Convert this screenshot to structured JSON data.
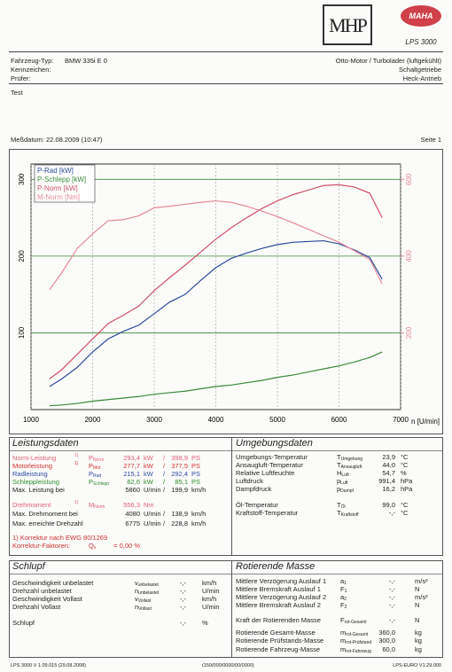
{
  "header": {
    "logo_left": "MHP",
    "logo_right": "MAHA",
    "model": "LPS 3000",
    "vehicle_type_label": "Fahrzeug-Typ:",
    "vehicle_type": "BMW 335i E  0",
    "plate_label": "Kennzeichen:",
    "inspector_label": "Prüfer:",
    "engine": "Otto-Motor / Turbolader (luftgekühlt)",
    "gearbox": "Schaltgetriebe",
    "drive": "Heck-Antrieb",
    "note": "Test",
    "date": "Meßdatum: 22.08.2009 (10:47)",
    "page": "Seite 1"
  },
  "chart_data": {
    "type": "line",
    "x_label": "n [U/min]",
    "x": [
      1300,
      1500,
      1750,
      2000,
      2250,
      2500,
      2750,
      3000,
      3250,
      3500,
      3750,
      4000,
      4250,
      4500,
      4750,
      5000,
      5250,
      5500,
      5750,
      6000,
      6250,
      6500,
      6700
    ],
    "xlim": [
      1000,
      7000
    ],
    "xticks": [
      1000,
      2000,
      3000,
      4000,
      5000,
      6000,
      7000
    ],
    "ylim": [
      0,
      320
    ],
    "yticks": [
      100,
      200,
      300
    ],
    "y2lim": [
      0,
      640
    ],
    "y2ticks": [
      200,
      400,
      600
    ],
    "grid": true,
    "legend": "upper left",
    "series": [
      {
        "name": "P-Rad [kW]",
        "color": "#2b4a9c",
        "values": [
          30,
          40,
          55,
          75,
          92,
          102,
          110,
          125,
          140,
          150,
          168,
          185,
          197,
          204,
          210,
          215,
          218,
          219,
          220,
          216,
          208,
          198,
          170
        ]
      },
      {
        "name": "P-Schlepp [kW]",
        "color": "#3a8a3a",
        "values": [
          5,
          6,
          8,
          11,
          13,
          15,
          17,
          20,
          22,
          24,
          27,
          30,
          32,
          35,
          38,
          42,
          45,
          49,
          53,
          57,
          62,
          68,
          75
        ]
      },
      {
        "name": "P-Norm [kW]",
        "color": "#d0506a",
        "values": [
          40,
          52,
          72,
          92,
          112,
          123,
          135,
          155,
          172,
          188,
          205,
          222,
          237,
          250,
          262,
          272,
          280,
          286,
          292,
          293,
          290,
          282,
          250
        ]
      },
      {
        "name": "M-Norm [Nm]",
        "color": "#e48a98",
        "axis": "y2",
        "values": [
          312,
          357,
          420,
          458,
          492,
          495,
          505,
          526,
          530,
          535,
          540,
          544,
          540,
          530,
          517,
          503,
          487,
          470,
          453,
          436,
          414,
          391,
          328
        ]
      }
    ]
  },
  "power": {
    "title": "Leistungsdaten",
    "rows": [
      {
        "label": "Norm-Leistung",
        "note": "1)",
        "symbol": "P",
        "sub": "Norm",
        "value": "293,4",
        "unit": "kW",
        "sep": "/",
        "value2": "398,9",
        "unit2": "PS",
        "color": "#e0607a"
      },
      {
        "label": "Motorleistung",
        "note": "1)",
        "symbol": "P",
        "sub": "Mot",
        "value": "277,7",
        "unit": "kW",
        "sep": "/",
        "value2": "377,5",
        "unit2": "PS",
        "color": "#d03030"
      },
      {
        "label": "Radleistung",
        "symbol": "P",
        "sub": "Rad",
        "value": "215,1",
        "unit": "kW",
        "sep": "/",
        "value2": "292,4",
        "unit2": "PS",
        "color": "#2b4a9c"
      },
      {
        "label": "Schleppleistung",
        "symbol": "P",
        "sub": "Schlepp",
        "value": "62,6",
        "unit": "kW",
        "sep": "/",
        "value2": "85,1",
        "unit2": "PS",
        "color": "#2e8a2e"
      },
      {
        "label": "Max. Leistung bei",
        "value": "5860",
        "unit": "U/min",
        "sep": "/",
        "value2": "199,9",
        "unit2": "km/h",
        "color": "#222222"
      },
      {
        "label": "Drehmoment",
        "note": "1)",
        "symbol": "M",
        "sub": "Norm",
        "value": "556,3",
        "unit": "Nm",
        "color": "#e0607a"
      },
      {
        "label": "Max. Drehmoment bei",
        "value": "4080",
        "unit": "U/min",
        "sep": "/",
        "value2": "138,9",
        "unit2": "km/h",
        "color": "#222222"
      },
      {
        "label": "Max. erreichte Drehzahl",
        "value": "6775",
        "unit": "U/min",
        "sep": "/",
        "value2": "228,8",
        "unit2": "km/h",
        "color": "#222222"
      },
      {
        "label": "1) Korrektur nach EWG 80/1269",
        "color": "#d03030"
      },
      {
        "label": "Korrektur-Faktoren:",
        "symbol": "Q",
        "sub": "v",
        "value": "=  0,00 %",
        "color": "#d03030"
      }
    ]
  },
  "ambient": {
    "title": "Umgebungsdaten",
    "rows": [
      {
        "label": "Umgebungs-Temperatur",
        "symbol": "T",
        "sub": "Umgebung",
        "value": "23,9",
        "unit": "°C"
      },
      {
        "label": "Ansaugluft-Temperatur",
        "symbol": "T",
        "sub": "Ansaugluft",
        "value": "44,0",
        "unit": "°C"
      },
      {
        "label": "Relative Luftfeuchte",
        "symbol": "H",
        "sub": "Luft",
        "value": "54,7",
        "unit": "%"
      },
      {
        "label": "Luftdruck",
        "symbol": "p",
        "sub": "Luft",
        "value": "991,4",
        "unit": "hPa"
      },
      {
        "label": "Dampfdruck",
        "symbol": "p",
        "sub": "Dampf",
        "value": "16,2",
        "unit": "hPa"
      },
      {
        "label": "Öl-Temperatur",
        "symbol": "T",
        "sub": "Öl",
        "value": "99,0",
        "unit": "°C"
      },
      {
        "label": "Kraftstoff-Temperatur",
        "symbol": "T",
        "sub": "Kraftstoff",
        "value": "-,-",
        "unit": "°C"
      }
    ]
  },
  "slip": {
    "title": "Schlupf",
    "rows": [
      {
        "label": "Geschwindigkeit unbelastet",
        "symbol": "v",
        "sub": "unbelastet",
        "value": "-,-",
        "unit": "km/h"
      },
      {
        "label": "Drehzahl unbelastet",
        "symbol": "n",
        "sub": "unbelastet",
        "value": "-,-",
        "unit": "U/min"
      },
      {
        "label": "Geschwindigkeit Vollast",
        "symbol": "v",
        "sub": "Vollast",
        "value": "-,-",
        "unit": "km/h"
      },
      {
        "label": "Drehzahl Vollast",
        "symbol": "n",
        "sub": "Vollast",
        "value": "-,-",
        "unit": "U/min"
      },
      {
        "label": "Schlupf",
        "value": "-,-",
        "unit": "%"
      }
    ]
  },
  "rotating": {
    "title": "Rotierende Masse",
    "rows": [
      {
        "label": "Mittlere Verzögerung Auslauf 1",
        "symbol": "a",
        "sub": "1",
        "value": "-,-",
        "unit": "m/s²"
      },
      {
        "label": "Mittlere Bremskraft Auslauf 1",
        "symbol": "F",
        "sub": "1",
        "value": "-,-",
        "unit": "N"
      },
      {
        "label": "Mittlere Verzögerung Auslauf 2",
        "symbol": "a",
        "sub": "2",
        "value": "-,-",
        "unit": "m/s²"
      },
      {
        "label": "Mittlere Bremskraft Auslauf 2",
        "symbol": "F",
        "sub": "2",
        "value": "-,-",
        "unit": "N"
      },
      {
        "label": "Kraft der Rotierenden Masse",
        "symbol": "F",
        "sub": "rot-Gesamt",
        "value": "-,-",
        "unit": "N"
      },
      {
        "label": "Rotierende Gesamt-Masse",
        "symbol": "m",
        "sub": "rot-Gesamt",
        "value": "360,0",
        "unit": "kg"
      },
      {
        "label": "Rotierende Prüfstands-Masse",
        "symbol": "m",
        "sub": "rot-Prüfstand",
        "value": "300,0",
        "unit": "kg"
      },
      {
        "label": "Rotierende Fahrzeug-Masse",
        "symbol": "m",
        "sub": "rot-Fahrzeug",
        "value": "60,0",
        "unit": "kg"
      }
    ]
  },
  "footer": {
    "left": "LPS 3000 V 1.09.015 (29.08.2008)",
    "center": "(150/000/0000/00/0000)",
    "right": "LPS-EURO V1.29.000"
  }
}
